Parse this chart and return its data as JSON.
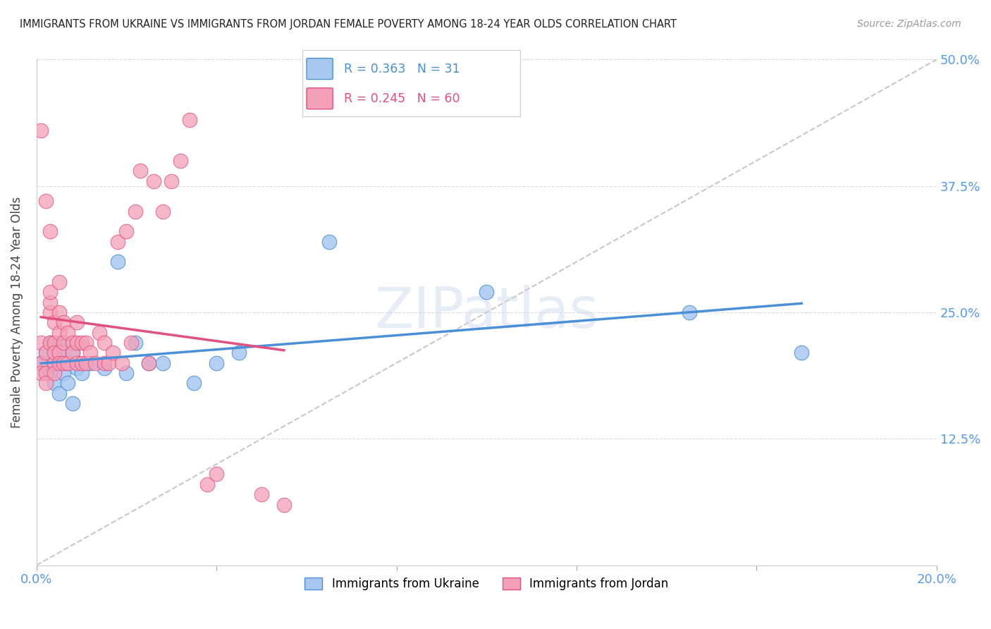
{
  "title": "IMMIGRANTS FROM UKRAINE VS IMMIGRANTS FROM JORDAN FEMALE POVERTY AMONG 18-24 YEAR OLDS CORRELATION CHART",
  "source": "Source: ZipAtlas.com",
  "ylabel": "Female Poverty Among 18-24 Year Olds",
  "xlim": [
    0.0,
    0.2
  ],
  "ylim": [
    0.0,
    0.5
  ],
  "ukraine_R": 0.363,
  "ukraine_N": 31,
  "jordan_R": 0.245,
  "jordan_N": 60,
  "ukraine_color": "#a8c8f0",
  "jordan_color": "#f4a0b8",
  "ukraine_line_color": "#4a90d9",
  "jordan_line_color": "#e05080",
  "diagonal_color": "#c8c8c8",
  "watermark": "ZIPatlas",
  "ukraine_x": [
    0.001,
    0.002,
    0.003,
    0.003,
    0.004,
    0.004,
    0.005,
    0.005,
    0.005,
    0.006,
    0.006,
    0.007,
    0.007,
    0.008,
    0.008,
    0.009,
    0.01,
    0.012,
    0.015,
    0.018,
    0.02,
    0.022,
    0.025,
    0.028,
    0.035,
    0.04,
    0.045,
    0.065,
    0.1,
    0.145,
    0.17
  ],
  "ukraine_y": [
    0.2,
    0.21,
    0.19,
    0.22,
    0.18,
    0.2,
    0.17,
    0.2,
    0.22,
    0.19,
    0.21,
    0.18,
    0.2,
    0.16,
    0.21,
    0.195,
    0.19,
    0.2,
    0.195,
    0.3,
    0.19,
    0.22,
    0.2,
    0.2,
    0.18,
    0.2,
    0.21,
    0.32,
    0.27,
    0.25,
    0.21
  ],
  "jordan_x": [
    0.001,
    0.001,
    0.001,
    0.001,
    0.002,
    0.002,
    0.002,
    0.002,
    0.003,
    0.003,
    0.003,
    0.003,
    0.003,
    0.004,
    0.004,
    0.004,
    0.004,
    0.004,
    0.005,
    0.005,
    0.005,
    0.005,
    0.005,
    0.006,
    0.006,
    0.006,
    0.007,
    0.007,
    0.008,
    0.008,
    0.009,
    0.009,
    0.009,
    0.01,
    0.01,
    0.011,
    0.011,
    0.012,
    0.013,
    0.014,
    0.015,
    0.015,
    0.016,
    0.017,
    0.018,
    0.019,
    0.02,
    0.021,
    0.022,
    0.023,
    0.025,
    0.026,
    0.028,
    0.03,
    0.032,
    0.034,
    0.038,
    0.04,
    0.05,
    0.055
  ],
  "jordan_y": [
    0.2,
    0.19,
    0.43,
    0.22,
    0.21,
    0.36,
    0.19,
    0.18,
    0.33,
    0.22,
    0.25,
    0.26,
    0.27,
    0.2,
    0.22,
    0.24,
    0.21,
    0.19,
    0.21,
    0.23,
    0.25,
    0.28,
    0.2,
    0.2,
    0.22,
    0.24,
    0.23,
    0.2,
    0.22,
    0.21,
    0.2,
    0.22,
    0.24,
    0.22,
    0.2,
    0.2,
    0.22,
    0.21,
    0.2,
    0.23,
    0.2,
    0.22,
    0.2,
    0.21,
    0.32,
    0.2,
    0.33,
    0.22,
    0.35,
    0.39,
    0.2,
    0.38,
    0.35,
    0.38,
    0.4,
    0.44,
    0.08,
    0.09,
    0.07,
    0.06
  ]
}
